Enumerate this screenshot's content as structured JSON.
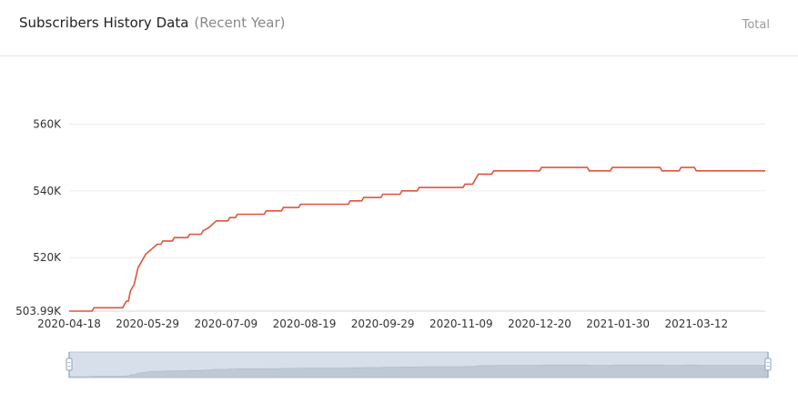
{
  "header": {
    "title": "Subscribers History Data",
    "subtitle": "(Recent Year)",
    "total_label": "Total"
  },
  "colors": {
    "line": "#e0533d",
    "grid": "#ececec",
    "axis_text": "#333333",
    "slider_fill": "#d7e0ea",
    "slider_border": "#b8c4d2",
    "slider_area": "#b9c4d1"
  },
  "chart_data": {
    "type": "line",
    "title": "",
    "xlabel": "",
    "ylabel": "",
    "ylim": [
      503990,
      565000
    ],
    "y_ticks": [
      503990,
      520000,
      540000,
      560000
    ],
    "y_tick_labels": [
      "503.99K",
      "520K",
      "540K",
      "560K"
    ],
    "x_tick_labels": [
      "2020-04-18",
      "2020-05-29",
      "2020-07-09",
      "2020-08-19",
      "2020-09-29",
      "2020-11-09",
      "2020-12-20",
      "2021-01-30",
      "2021-03-12"
    ],
    "x_range": [
      "2020-04-18",
      "2021-04-17"
    ],
    "grid": true,
    "series": [
      {
        "values": [
          [
            "2020-04-18",
            503990
          ],
          [
            "2020-04-30",
            503990
          ],
          [
            "2020-05-01",
            505000
          ],
          [
            "2020-05-16",
            505000
          ],
          [
            "2020-05-18",
            507000
          ],
          [
            "2020-05-19",
            507000
          ],
          [
            "2020-05-20",
            510000
          ],
          [
            "2020-05-22",
            512000
          ],
          [
            "2020-05-24",
            517000
          ],
          [
            "2020-05-25",
            518000
          ],
          [
            "2020-05-27",
            520000
          ],
          [
            "2020-05-28",
            521000
          ],
          [
            "2020-05-30",
            522000
          ],
          [
            "2020-06-01",
            523000
          ],
          [
            "2020-06-03",
            524000
          ],
          [
            "2020-06-05",
            524000
          ],
          [
            "2020-06-06",
            525000
          ],
          [
            "2020-06-11",
            525000
          ],
          [
            "2020-06-12",
            526000
          ],
          [
            "2020-06-19",
            526000
          ],
          [
            "2020-06-20",
            527000
          ],
          [
            "2020-06-26",
            527000
          ],
          [
            "2020-06-27",
            528000
          ],
          [
            "2020-06-30",
            529000
          ],
          [
            "2020-07-02",
            530000
          ],
          [
            "2020-07-04",
            531000
          ],
          [
            "2020-07-10",
            531000
          ],
          [
            "2020-07-11",
            532000
          ],
          [
            "2020-07-14",
            532000
          ],
          [
            "2020-07-15",
            533000
          ],
          [
            "2020-07-29",
            533000
          ],
          [
            "2020-07-30",
            534000
          ],
          [
            "2020-08-07",
            534000
          ],
          [
            "2020-08-08",
            535000
          ],
          [
            "2020-08-16",
            535000
          ],
          [
            "2020-08-17",
            536000
          ],
          [
            "2020-09-11",
            536000
          ],
          [
            "2020-09-12",
            537000
          ],
          [
            "2020-09-18",
            537000
          ],
          [
            "2020-09-19",
            538000
          ],
          [
            "2020-09-28",
            538000
          ],
          [
            "2020-09-29",
            539000
          ],
          [
            "2020-10-08",
            539000
          ],
          [
            "2020-10-09",
            540000
          ],
          [
            "2020-10-17",
            540000
          ],
          [
            "2020-10-18",
            541000
          ],
          [
            "2020-11-10",
            541000
          ],
          [
            "2020-11-11",
            542000
          ],
          [
            "2020-11-15",
            542000
          ],
          [
            "2020-11-16",
            543000
          ],
          [
            "2020-11-18",
            545000
          ],
          [
            "2020-11-25",
            545000
          ],
          [
            "2020-11-26",
            546000
          ],
          [
            "2020-12-20",
            546000
          ],
          [
            "2020-12-21",
            547000
          ],
          [
            "2021-01-14",
            547000
          ],
          [
            "2021-01-15",
            546000
          ],
          [
            "2021-01-26",
            546000
          ],
          [
            "2021-01-27",
            547000
          ],
          [
            "2021-02-21",
            547000
          ],
          [
            "2021-02-22",
            546000
          ],
          [
            "2021-03-03",
            546000
          ],
          [
            "2021-03-04",
            547000
          ],
          [
            "2021-03-11",
            547000
          ],
          [
            "2021-03-12",
            546000
          ],
          [
            "2021-04-17",
            546000
          ]
        ]
      }
    ]
  }
}
